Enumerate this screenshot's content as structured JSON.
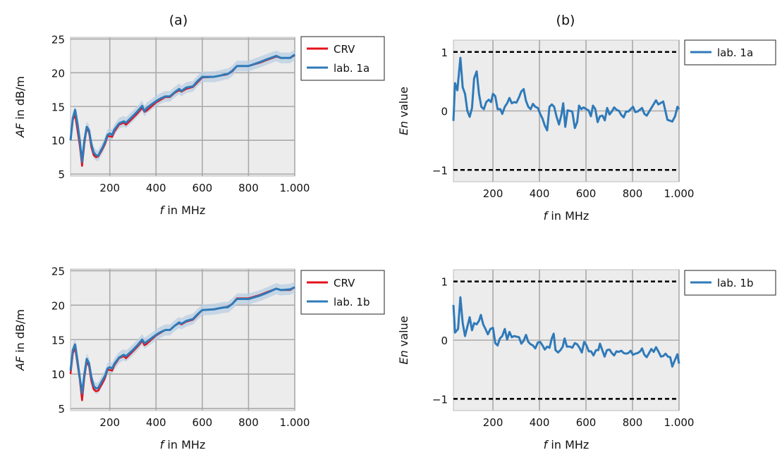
{
  "chart_data": [
    {
      "panel": "(a)",
      "type": "line",
      "title": "(a)",
      "xlabel": "f in MHz",
      "xlabel_var": "f",
      "xlabel_rest": " in MHz",
      "ylabel_var": "AF",
      "ylabel_rest": " in dB/m",
      "xlim": [
        30,
        1000
      ],
      "ylim": [
        4.7,
        25.25
      ],
      "xticks": [
        200,
        400,
        600,
        800,
        1000
      ],
      "xtick_labels": [
        "200",
        "400",
        "600",
        "800",
        "1.000"
      ],
      "yticks": [
        5,
        10,
        15,
        20,
        25
      ],
      "ytick_labels": [
        "5",
        "10",
        "15",
        "20",
        "25"
      ],
      "grid": true,
      "legend_position": "outside-right-top",
      "band_halfwidth": 0.8,
      "series": [
        {
          "name": "CRV",
          "color": "#e3111b",
          "x": [
            30,
            40,
            50,
            60,
            70,
            80,
            90,
            100,
            110,
            120,
            130,
            140,
            150,
            160,
            170,
            180,
            190,
            200,
            210,
            220,
            240,
            260,
            270,
            300,
            320,
            340,
            350,
            360,
            380,
            400,
            420,
            440,
            460,
            480,
            500,
            510,
            530,
            560,
            580,
            600,
            650,
            680,
            700,
            710,
            730,
            750,
            800,
            850,
            880,
            920,
            940,
            980,
            1000
          ],
          "y": [
            10,
            13,
            13.8,
            11.5,
            9.2,
            6.2,
            9.5,
            11.8,
            11.2,
            9,
            7.8,
            7.5,
            7.6,
            8.2,
            8.8,
            9.5,
            10.6,
            10.6,
            10.5,
            11.3,
            12.3,
            12.6,
            12.3,
            13.3,
            14,
            14.8,
            14.2,
            14.4,
            15,
            15.6,
            16,
            16.4,
            16.4,
            17,
            17.4,
            17.2,
            17.6,
            17.9,
            18.6,
            19.3,
            19.4,
            19.6,
            19.7,
            19.8,
            20.2,
            21,
            21,
            21.5,
            21.9,
            22.4,
            22.2,
            22.2,
            22.6
          ]
        },
        {
          "name": "lab. 1a",
          "color": "#2f7ab9",
          "x": [
            30,
            40,
            50,
            60,
            70,
            80,
            90,
            100,
            110,
            120,
            130,
            140,
            150,
            160,
            170,
            180,
            190,
            200,
            210,
            220,
            240,
            260,
            270,
            300,
            320,
            340,
            350,
            360,
            380,
            400,
            420,
            440,
            460,
            480,
            500,
            510,
            530,
            560,
            580,
            600,
            650,
            680,
            700,
            710,
            730,
            750,
            800,
            850,
            880,
            920,
            940,
            980,
            1000
          ],
          "y": [
            10,
            13.3,
            14.5,
            12.5,
            10,
            6.8,
            10,
            12,
            11.5,
            9.5,
            8.2,
            7.8,
            7.7,
            8.4,
            9,
            9.8,
            10.8,
            11,
            10.8,
            11.6,
            12.5,
            12.8,
            12.6,
            13.6,
            14.3,
            15.1,
            14.3,
            14.8,
            15.3,
            15.8,
            16.2,
            16.5,
            16.5,
            17.1,
            17.6,
            17.3,
            17.8,
            18,
            18.8,
            19.4,
            19.4,
            19.6,
            19.8,
            19.8,
            20.3,
            21,
            21,
            21.6,
            22,
            22.5,
            22.2,
            22.2,
            22.7
          ]
        }
      ]
    },
    {
      "panel": "(b)",
      "type": "line",
      "title": "(b)",
      "xlabel": "f in MHz",
      "xlabel_var": "f",
      "xlabel_rest": " in MHz",
      "ylabel_var": "En",
      "ylabel_rest": " value",
      "xlim": [
        30,
        1000
      ],
      "ylim": [
        -1.2,
        1.2
      ],
      "xticks": [
        200,
        400,
        600,
        800,
        1000
      ],
      "xtick_labels": [
        "200",
        "400",
        "600",
        "800",
        "1.000"
      ],
      "yticks": [
        -1,
        0,
        1
      ],
      "ytick_labels": [
        "−1",
        "0",
        "1"
      ],
      "reference_lines": [
        1,
        -1
      ],
      "grid": true,
      "legend_position": "outside-right-top",
      "series": [
        {
          "name": "lab. 1a",
          "color": "#2f7ab9",
          "x": [
            30,
            37,
            47,
            60,
            70,
            80,
            90,
            100,
            110,
            119,
            130,
            140,
            150,
            161,
            171,
            182,
            192,
            200,
            210,
            220,
            232,
            240,
            251,
            261,
            271,
            281,
            291,
            301,
            312,
            322,
            332,
            342,
            352,
            362,
            372,
            382,
            393,
            403,
            413,
            423,
            433,
            443,
            453,
            463,
            473,
            484,
            494,
            502,
            511,
            521,
            531,
            541,
            552,
            562,
            570,
            580,
            590,
            601,
            611,
            621,
            630,
            640,
            650,
            660,
            671,
            681,
            691,
            701,
            711,
            721,
            731,
            742,
            752,
            762,
            772,
            782,
            792,
            802,
            812,
            822,
            841,
            851,
            861,
            881,
            901,
            911,
            932,
            950,
            971,
            983,
            993,
            1000
          ],
          "y": [
            -0.17,
            0.47,
            0.35,
            0.9,
            0.4,
            0.29,
            0,
            -0.1,
            0.05,
            0.55,
            0.67,
            0.29,
            0.07,
            0.03,
            0.15,
            0.19,
            0.15,
            0.29,
            0.25,
            0.03,
            0.03,
            -0.05,
            0.07,
            0.13,
            0.22,
            0.13,
            0.15,
            0.14,
            0.23,
            0.33,
            0.37,
            0.17,
            0.07,
            0.03,
            0.12,
            0.07,
            0.05,
            -0.05,
            -0.13,
            -0.25,
            -0.33,
            0.07,
            0.11,
            0.07,
            -0.09,
            -0.23,
            -0.07,
            0.13,
            -0.27,
            0.01,
            0,
            -0.01,
            -0.29,
            -0.19,
            0.09,
            0.03,
            0.06,
            0.03,
            0.01,
            -0.09,
            0.09,
            0.03,
            -0.19,
            -0.09,
            -0.08,
            -0.16,
            0.05,
            -0.06,
            -0.01,
            0.06,
            0.02,
            0,
            -0.07,
            -0.11,
            -0.01,
            -0.01,
            0.03,
            0.07,
            -0.02,
            -0.01,
            0.05,
            -0.05,
            -0.08,
            0.05,
            0.18,
            0.11,
            0.16,
            -0.15,
            -0.18,
            -0.09,
            0.07,
            0.03
          ]
        }
      ]
    },
    {
      "panel": "(a)",
      "type": "line",
      "title": "",
      "xlabel": "f in MHz",
      "xlabel_var": "f",
      "xlabel_rest": " in MHz",
      "ylabel_var": "AF",
      "ylabel_rest": " in dB/m",
      "xlim": [
        30,
        1000
      ],
      "ylim": [
        4.7,
        25.25
      ],
      "xticks": [
        200,
        400,
        600,
        800,
        1000
      ],
      "xtick_labels": [
        "200",
        "400",
        "600",
        "800",
        "1.000"
      ],
      "yticks": [
        5,
        10,
        15,
        20,
        25
      ],
      "ytick_labels": [
        "5",
        "10",
        "15",
        "20",
        "25"
      ],
      "grid": true,
      "legend_position": "outside-right-top",
      "band_halfwidth": 0.8,
      "series": [
        {
          "name": "CRV",
          "color": "#e3111b",
          "x": [
            30,
            40,
            50,
            60,
            70,
            80,
            90,
            100,
            110,
            120,
            130,
            140,
            150,
            160,
            170,
            180,
            190,
            200,
            210,
            220,
            240,
            260,
            270,
            300,
            320,
            340,
            350,
            360,
            380,
            400,
            420,
            440,
            460,
            480,
            500,
            510,
            530,
            560,
            580,
            600,
            650,
            680,
            700,
            710,
            730,
            750,
            800,
            850,
            880,
            920,
            940,
            980,
            1000
          ],
          "y": [
            10,
            13,
            13.8,
            11.5,
            9.2,
            6.2,
            9.5,
            11.8,
            11.2,
            9,
            7.8,
            7.5,
            7.6,
            8.2,
            8.8,
            9.5,
            10.6,
            10.6,
            10.5,
            11.3,
            12.3,
            12.6,
            12.3,
            13.3,
            14,
            14.8,
            14.2,
            14.4,
            15,
            15.6,
            16,
            16.4,
            16.4,
            17,
            17.4,
            17.2,
            17.6,
            17.9,
            18.6,
            19.3,
            19.4,
            19.6,
            19.7,
            19.8,
            20.2,
            21,
            21,
            21.5,
            21.9,
            22.4,
            22.2,
            22.2,
            22.6
          ]
        },
        {
          "name": "lab. 1b",
          "color": "#2f7ab9",
          "x": [
            30,
            40,
            50,
            60,
            70,
            80,
            90,
            100,
            110,
            120,
            130,
            140,
            150,
            160,
            170,
            180,
            190,
            200,
            210,
            220,
            240,
            260,
            270,
            300,
            320,
            340,
            350,
            360,
            380,
            400,
            420,
            440,
            460,
            480,
            500,
            510,
            530,
            560,
            580,
            600,
            650,
            680,
            700,
            710,
            730,
            750,
            800,
            850,
            880,
            920,
            940,
            980,
            1000
          ],
          "y": [
            10.5,
            13.5,
            14.3,
            12,
            9.5,
            7.2,
            10,
            12.2,
            11.6,
            9.6,
            8.3,
            7.9,
            8,
            8.6,
            9.2,
            9.8,
            10.8,
            11,
            10.8,
            11.5,
            12.4,
            12.8,
            12.6,
            13.5,
            14.2,
            15,
            14.5,
            14.7,
            15.2,
            15.7,
            16.1,
            16.4,
            16.4,
            17,
            17.5,
            17.3,
            17.7,
            18,
            18.7,
            19.3,
            19.4,
            19.6,
            19.7,
            19.7,
            20.2,
            20.9,
            20.9,
            21.4,
            21.8,
            22.4,
            22.2,
            22.3,
            22.6
          ]
        }
      ]
    },
    {
      "panel": "(b)",
      "type": "line",
      "title": "",
      "xlabel": "f in MHz",
      "xlabel_var": "f",
      "xlabel_rest": " in MHz",
      "ylabel_var": "En",
      "ylabel_rest": " value",
      "xlim": [
        30,
        1000
      ],
      "ylim": [
        -1.2,
        1.2
      ],
      "xticks": [
        200,
        400,
        600,
        800,
        1000
      ],
      "xtick_labels": [
        "200",
        "400",
        "600",
        "800",
        "1.000"
      ],
      "yticks": [
        -1,
        0,
        1
      ],
      "ytick_labels": [
        "−1",
        "0",
        "1"
      ],
      "reference_lines": [
        1,
        -1
      ],
      "grid": true,
      "legend_position": "outside-right-top",
      "series": [
        {
          "name": "lab. 1b",
          "color": "#2f7ab9",
          "x": [
            30,
            37,
            50,
            60,
            70,
            80,
            90,
            100,
            110,
            119,
            130,
            140,
            148,
            158,
            168,
            178,
            189,
            200,
            210,
            220,
            230,
            240,
            251,
            261,
            271,
            281,
            291,
            301,
            312,
            322,
            332,
            342,
            352,
            362,
            372,
            382,
            393,
            403,
            413,
            423,
            433,
            443,
            453,
            461,
            469,
            480,
            490,
            500,
            508,
            518,
            531,
            541,
            552,
            562,
            572,
            582,
            592,
            602,
            612,
            622,
            632,
            643,
            653,
            660,
            670,
            680,
            690,
            701,
            711,
            721,
            731,
            741,
            752,
            762,
            772,
            782,
            792,
            802,
            812,
            822,
            833,
            841,
            851,
            861,
            871,
            881,
            891,
            901,
            911,
            922,
            932,
            942,
            952,
            962,
            971,
            981,
            993,
            1000
          ],
          "y": [
            0.6,
            0.13,
            0.19,
            0.73,
            0.29,
            0.07,
            0.23,
            0.39,
            0.17,
            0.29,
            0.27,
            0.33,
            0.43,
            0.27,
            0.19,
            0.1,
            0.19,
            0.21,
            -0.05,
            -0.09,
            0.03,
            0.07,
            0.19,
            0.01,
            0.14,
            0.05,
            0.07,
            0.06,
            0.05,
            -0.06,
            -0.01,
            0.09,
            -0.03,
            -0.07,
            -0.09,
            -0.14,
            -0.04,
            -0.03,
            -0.09,
            -0.16,
            -0.11,
            -0.13,
            0.03,
            0.11,
            -0.17,
            -0.21,
            -0.17,
            -0.11,
            0.03,
            -0.11,
            -0.11,
            -0.13,
            -0.05,
            -0.07,
            -0.13,
            -0.21,
            -0.03,
            -0.09,
            -0.19,
            -0.19,
            -0.26,
            -0.17,
            -0.17,
            -0.06,
            -0.17,
            -0.28,
            -0.17,
            -0.16,
            -0.22,
            -0.26,
            -0.19,
            -0.2,
            -0.18,
            -0.22,
            -0.23,
            -0.22,
            -0.18,
            -0.25,
            -0.23,
            -0.22,
            -0.19,
            -0.14,
            -0.25,
            -0.29,
            -0.22,
            -0.15,
            -0.2,
            -0.12,
            -0.19,
            -0.28,
            -0.27,
            -0.23,
            -0.28,
            -0.29,
            -0.45,
            -0.35,
            -0.24,
            -0.4
          ]
        }
      ]
    }
  ]
}
